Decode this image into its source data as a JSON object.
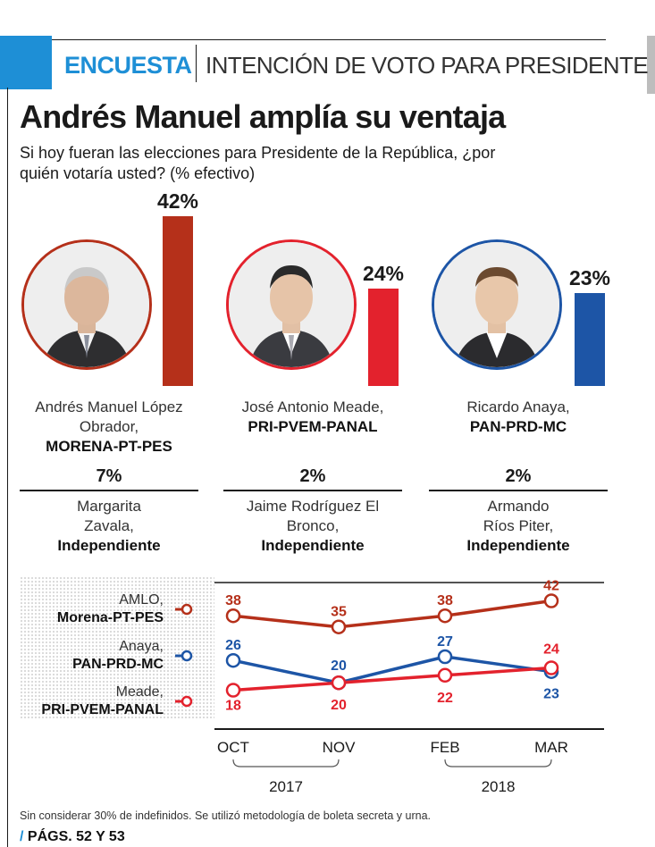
{
  "header": {
    "tag": "ENCUESTA",
    "subtitle": "INTENCIÓN DE VOTO PARA PRESIDENTE"
  },
  "headline": "Andrés Manuel amplía su ventaja",
  "question": "Si hoy fueran las elecciones para Presidente de la República, ¿por quién votaría usted? (% efectivo)",
  "colors": {
    "accent": "#1e8fd6",
    "morena": "#b5301a",
    "pri": "#e3222d",
    "pan": "#1d55a6"
  },
  "candidates": [
    {
      "pct": "42%",
      "name": "Andrés Manuel López Obrador,",
      "party": "MORENA-PT-PES",
      "color": "#b5301a",
      "portrait_icon": "person-portrait-icon"
    },
    {
      "pct": "24%",
      "name": "José Antonio Meade,",
      "party": "PRI-PVEM-PANAL",
      "color": "#e3222d",
      "portrait_icon": "person-portrait-icon"
    },
    {
      "pct": "23%",
      "name": "Ricardo Anaya,",
      "party": "PAN-PRD-MC",
      "color": "#1d55a6",
      "portrait_icon": "person-portrait-icon"
    }
  ],
  "independents": [
    {
      "pct": "7%",
      "name": "Margarita Zavala,",
      "party": "Independiente"
    },
    {
      "pct": "2%",
      "name": "Jaime Rodríguez El Bronco,",
      "party": "Independiente"
    },
    {
      "pct": "2%",
      "name": "Armando Ríos Piter,",
      "party": "Independiente"
    }
  ],
  "legend": [
    {
      "name": "AMLO,",
      "party": "Morena-PT-PES"
    },
    {
      "name": "Anaya,",
      "party": "PAN-PRD-MC"
    },
    {
      "name": "Meade,",
      "party": "PRI-PVEM-PANAL"
    }
  ],
  "chart_data": [
    {
      "type": "bar",
      "title": "Si hoy fueran las elecciones para Presidente de la República, ¿por quién votaría usted? (% efectivo)",
      "categories": [
        "Andrés Manuel López Obrador",
        "José Antonio Meade",
        "Ricardo Anaya"
      ],
      "values": [
        42,
        24,
        23
      ],
      "data_labels": [
        "42%",
        "24%",
        "23%"
      ],
      "ylim": [
        0,
        42
      ]
    },
    {
      "type": "line",
      "x": [
        "OCT",
        "NOV",
        "FEB",
        "MAR"
      ],
      "year_groups": [
        {
          "label": "2017",
          "from": "OCT",
          "to": "NOV"
        },
        {
          "label": "2018",
          "from": "FEB",
          "to": "MAR"
        }
      ],
      "ylim": [
        15,
        45
      ],
      "grid": false,
      "series": [
        {
          "name": "AMLO, Morena-PT-PES",
          "values": [
            38,
            35,
            38,
            42
          ],
          "color": "#b5301a"
        },
        {
          "name": "Anaya, PAN-PRD-MC",
          "values": [
            26,
            20,
            27,
            23
          ],
          "color": "#1d55a6"
        },
        {
          "name": "Meade, PRI-PVEM-PANAL",
          "values": [
            18,
            20,
            22,
            24
          ],
          "color": "#e3222d"
        }
      ]
    }
  ],
  "footnote": "Sin considerar 30% de indefinidos. Se utilizó metodología de boleta secreta y urna.",
  "pages": "PÁGS. 52 Y 53",
  "pages_slash": "/"
}
